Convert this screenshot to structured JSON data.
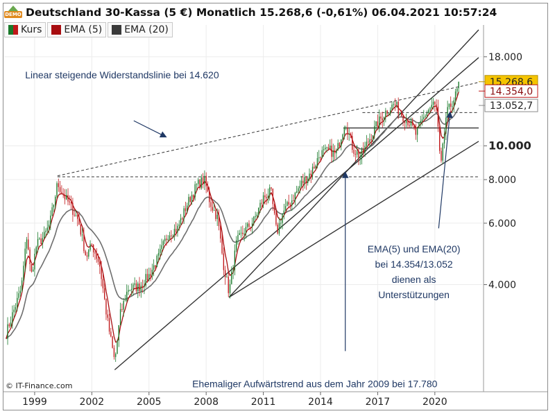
{
  "header": {
    "logo_label": "DEMO",
    "title": "Deutschland 30-Kassa (5 €) Monatlich 15.268,6 (-0,61%) 06.04.2021 10:57:24"
  },
  "legend": [
    {
      "label": "Kurs",
      "swatch": "kurs"
    },
    {
      "label": "EMA (5)",
      "swatch": "ema5"
    },
    {
      "label": "EMA (20)",
      "swatch": "ema20"
    }
  ],
  "copyright": "© IT-Finance.com",
  "colors": {
    "up": "#1a7a2b",
    "down": "#c0181a",
    "ema5": "#a80d10",
    "ema20": "#6e6e6e",
    "trend": "#333333",
    "price_box": "#f5c400",
    "ema5_box_border": "#c0181a",
    "ema20_box_border": "#8a8a8a"
  },
  "chart_data": {
    "type": "candlestick",
    "scale": "log",
    "ylim": [
      2000,
      22000
    ],
    "xlim": [
      1997.4,
      2022.3
    ],
    "x_ticks": [
      "1999",
      "2002",
      "2005",
      "2008",
      "2011",
      "2014",
      "2017",
      "2020"
    ],
    "y_ticks": [
      {
        "value": 18000,
        "label": "18.000",
        "bold": false
      },
      {
        "value": 10000,
        "label": "10.000",
        "bold": true
      },
      {
        "value": 8000,
        "label": "8.000",
        "bold": false
      },
      {
        "value": 6000,
        "label": "6.000",
        "bold": false
      },
      {
        "value": 4000,
        "label": "4.000",
        "bold": false
      }
    ],
    "price_markers": [
      {
        "value": 15268.6,
        "label": "15.268,6",
        "style": "price"
      },
      {
        "value": 14354,
        "label": "14.354,0",
        "style": "ema5"
      },
      {
        "value": 13052.7,
        "label": "13.052,7",
        "style": "ema20"
      }
    ],
    "anchors": [
      [
        1997.5,
        2900
      ],
      [
        1998.3,
        3900
      ],
      [
        1998.6,
        5600
      ],
      [
        1998.8,
        4200
      ],
      [
        1999.1,
        5200
      ],
      [
        1999.5,
        5500
      ],
      [
        1999.8,
        6000
      ],
      [
        2000.2,
        7800
      ],
      [
        2000.6,
        7100
      ],
      [
        2000.9,
        6700
      ],
      [
        2001.3,
        6100
      ],
      [
        2001.7,
        4800
      ],
      [
        2002.0,
        5200
      ],
      [
        2002.4,
        4600
      ],
      [
        2002.8,
        3200
      ],
      [
        2003.2,
        2400
      ],
      [
        2003.5,
        3300
      ],
      [
        2003.9,
        3900
      ],
      [
        2004.5,
        3950
      ],
      [
        2005.0,
        4250
      ],
      [
        2005.5,
        4800
      ],
      [
        2006.0,
        5600
      ],
      [
        2006.5,
        5800
      ],
      [
        2007.0,
        6800
      ],
      [
        2007.5,
        7700
      ],
      [
        2007.9,
        8000
      ],
      [
        2008.2,
        6900
      ],
      [
        2008.6,
        6200
      ],
      [
        2008.9,
        4600
      ],
      [
        2009.2,
        3800
      ],
      [
        2009.6,
        5300
      ],
      [
        2010.0,
        5700
      ],
      [
        2010.5,
        6100
      ],
      [
        2011.0,
        7100
      ],
      [
        2011.4,
        7400
      ],
      [
        2011.7,
        5600
      ],
      [
        2012.0,
        6400
      ],
      [
        2012.5,
        7000
      ],
      [
        2013.0,
        7800
      ],
      [
        2013.5,
        8400
      ],
      [
        2014.0,
        9500
      ],
      [
        2014.5,
        9700
      ],
      [
        2014.8,
        9400
      ],
      [
        2015.3,
        11800
      ],
      [
        2015.7,
        9800
      ],
      [
        2016.1,
        9300
      ],
      [
        2016.5,
        10300
      ],
      [
        2017.0,
        11600
      ],
      [
        2017.4,
        12500
      ],
      [
        2017.9,
        13200
      ],
      [
        2018.2,
        12400
      ],
      [
        2018.7,
        11600
      ],
      [
        2019.0,
        10800
      ],
      [
        2019.5,
        12300
      ],
      [
        2019.9,
        13200
      ],
      [
        2020.1,
        12800
      ],
      [
        2020.3,
        8500
      ],
      [
        2020.6,
        12300
      ],
      [
        2020.9,
        13300
      ],
      [
        2021.1,
        14000
      ],
      [
        2021.3,
        15268.6
      ]
    ],
    "trend_lines": [
      {
        "name": "resistance-dashed",
        "dashed": true,
        "points": [
          [
            2000.2,
            8200
          ],
          [
            2022.3,
            15200
          ]
        ]
      },
      {
        "name": "horizontal-8000-dashed",
        "dashed": true,
        "points": [
          [
            2000.2,
            8150
          ],
          [
            2022.3,
            8150
          ]
        ]
      },
      {
        "name": "horizontal-12000-dashed",
        "dashed": true,
        "points": [
          [
            2016.2,
            12450
          ],
          [
            2022.3,
            12450
          ]
        ]
      },
      {
        "name": "support-horizontal-solid",
        "dashed": false,
        "points": [
          [
            2015.2,
            11250
          ],
          [
            2022.3,
            11250
          ]
        ]
      },
      {
        "name": "trend-from-2003",
        "dashed": false,
        "points": [
          [
            2003.2,
            2280
          ],
          [
            2022.3,
            17900
          ]
        ]
      },
      {
        "name": "trend-from-2009",
        "dashed": false,
        "points": [
          [
            2009.2,
            3680
          ],
          [
            2022.3,
            21500
          ]
        ]
      },
      {
        "name": "trend-lower-2009",
        "dashed": false,
        "points": [
          [
            2009.2,
            3680
          ],
          [
            2022.3,
            10300
          ]
        ]
      }
    ],
    "annotations": [
      {
        "name": "annotation-resistance",
        "lines": [
          "Linear steigende Widerstandslinie bei 14.620"
        ],
        "x": 1998.5,
        "y": 15600,
        "align": "start",
        "arrow": {
          "from": [
            2004.2,
            11800
          ],
          "to": [
            2005.9,
            10600
          ]
        }
      },
      {
        "name": "annotation-ema",
        "lines": [
          "EMA(5) und EMA(20)",
          "bei 14.354/13.052",
          "dienen als",
          "Unterstützungen"
        ],
        "x": 2018.9,
        "y": 4950,
        "align": "middle",
        "arrow": {
          "from": [
            2020.2,
            5800
          ],
          "to": [
            2020.8,
            12500
          ]
        }
      },
      {
        "name": "annotation-uptrend",
        "lines": [
          "Ehemaliger Aufwärtstrend aus dem Jahr 2009 bei 17.780"
        ],
        "x": 2013.7,
        "y": 2030,
        "align": "middle",
        "arrow": {
          "from": [
            2015.3,
            2580
          ],
          "to": [
            2015.3,
            8400
          ]
        }
      }
    ]
  }
}
